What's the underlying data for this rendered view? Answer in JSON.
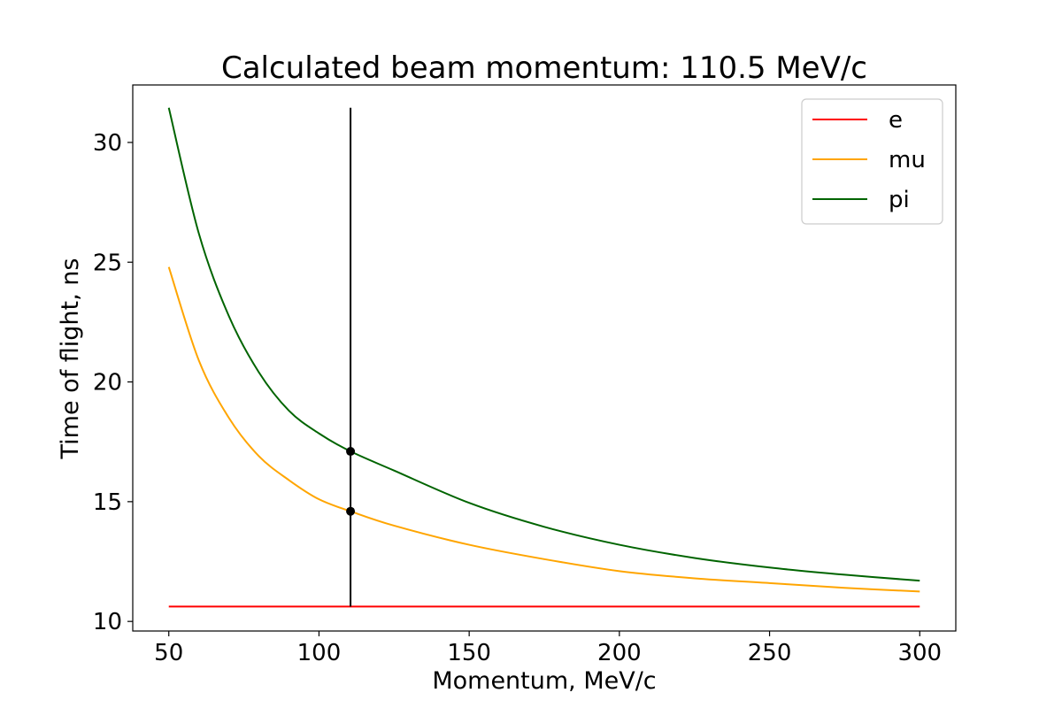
{
  "chart_data": {
    "type": "line",
    "title": "Calculated beam momentum: 110.5 MeV/c",
    "xlabel": "Momentum, MeV/c",
    "ylabel": "Time of flight, ns",
    "xlim": [
      38,
      312
    ],
    "ylim": [
      9.6,
      32.4
    ],
    "xticks": [
      50,
      100,
      150,
      200,
      250,
      300
    ],
    "yticks": [
      10,
      15,
      20,
      25,
      30
    ],
    "grid": false,
    "legend_position": "top-right",
    "series": [
      {
        "name": "e",
        "color": "#ff0000",
        "x": [
          50,
          75,
          100,
          125,
          150,
          175,
          200,
          225,
          250,
          275,
          300
        ],
        "y": [
          10.62,
          10.62,
          10.62,
          10.62,
          10.62,
          10.62,
          10.62,
          10.62,
          10.62,
          10.62,
          10.62
        ]
      },
      {
        "name": "mu",
        "color": "#ffa500",
        "x": [
          50,
          60,
          70,
          80,
          90,
          100,
          110.5,
          125,
          150,
          175,
          200,
          225,
          250,
          275,
          300
        ],
        "y": [
          24.8,
          20.9,
          18.5,
          16.9,
          15.9,
          15.1,
          14.6,
          14.0,
          13.2,
          12.6,
          12.1,
          11.8,
          11.6,
          11.4,
          11.25
        ]
      },
      {
        "name": "pi",
        "color": "#006400",
        "x": [
          50,
          60,
          70,
          80,
          90,
          100,
          110.5,
          125,
          150,
          175,
          200,
          225,
          250,
          275,
          300
        ],
        "y": [
          31.45,
          26.2,
          22.75,
          20.4,
          18.8,
          17.85,
          17.1,
          16.3,
          14.95,
          13.95,
          13.2,
          12.65,
          12.25,
          11.95,
          11.7
        ]
      }
    ],
    "marker_line": {
      "x": 110.5,
      "y_from": 10.62,
      "y_to": 31.45,
      "color": "#000000"
    },
    "markers": [
      {
        "x": 110.5,
        "y": 17.1,
        "series": "pi"
      },
      {
        "x": 110.5,
        "y": 14.6,
        "series": "mu"
      }
    ]
  }
}
